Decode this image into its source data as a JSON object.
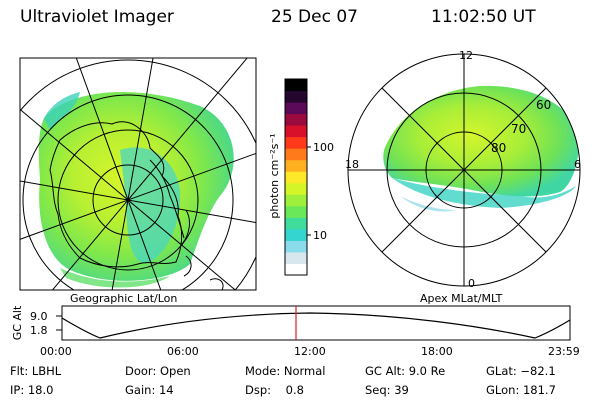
{
  "header": {
    "instrument": "Ultraviolet Imager",
    "date": "25 Dec 07",
    "time": "11:02:50 UT"
  },
  "left_panel": {
    "caption": "Geographic Lat/Lon"
  },
  "right_panel": {
    "caption": "Apex MLat/MLT",
    "mlt_labels": {
      "top": "12",
      "left": "18",
      "right": "6",
      "bottom": "0"
    },
    "mlat_labels": [
      "60",
      "70",
      "80"
    ]
  },
  "colorbar": {
    "unit_label": "photon cm⁻²s⁻¹",
    "ticks": [
      "100",
      "10"
    ],
    "colors": [
      "#ffffff",
      "#d8e6ee",
      "#8adcea",
      "#34d4d0",
      "#40dc9c",
      "#6ae85a",
      "#9ef03c",
      "#d4f528",
      "#ffe82a",
      "#ffb020",
      "#ff7a1a",
      "#ff3a1a",
      "#d8102a",
      "#9a0a3e",
      "#5a0a58",
      "#24062e",
      "#000000"
    ]
  },
  "altitude_strip": {
    "axis_label": "GC Alt",
    "ticks": [
      "9.0",
      "1.8"
    ],
    "time_ticks": [
      "00:00",
      "06:00",
      "12:00",
      "18:00",
      "23:59"
    ],
    "current_time_marker": "11:02:50"
  },
  "info": [
    [
      "Flt: LBHL",
      "Door: Open",
      "Mode: Normal",
      "GC Alt: 9.0 Re",
      "GLat: −82.1"
    ],
    [
      "IP: 18.0",
      "Gain: 14",
      "Dsp:    0.8",
      "Seq: 39",
      "GLon: 181.7"
    ]
  ]
}
